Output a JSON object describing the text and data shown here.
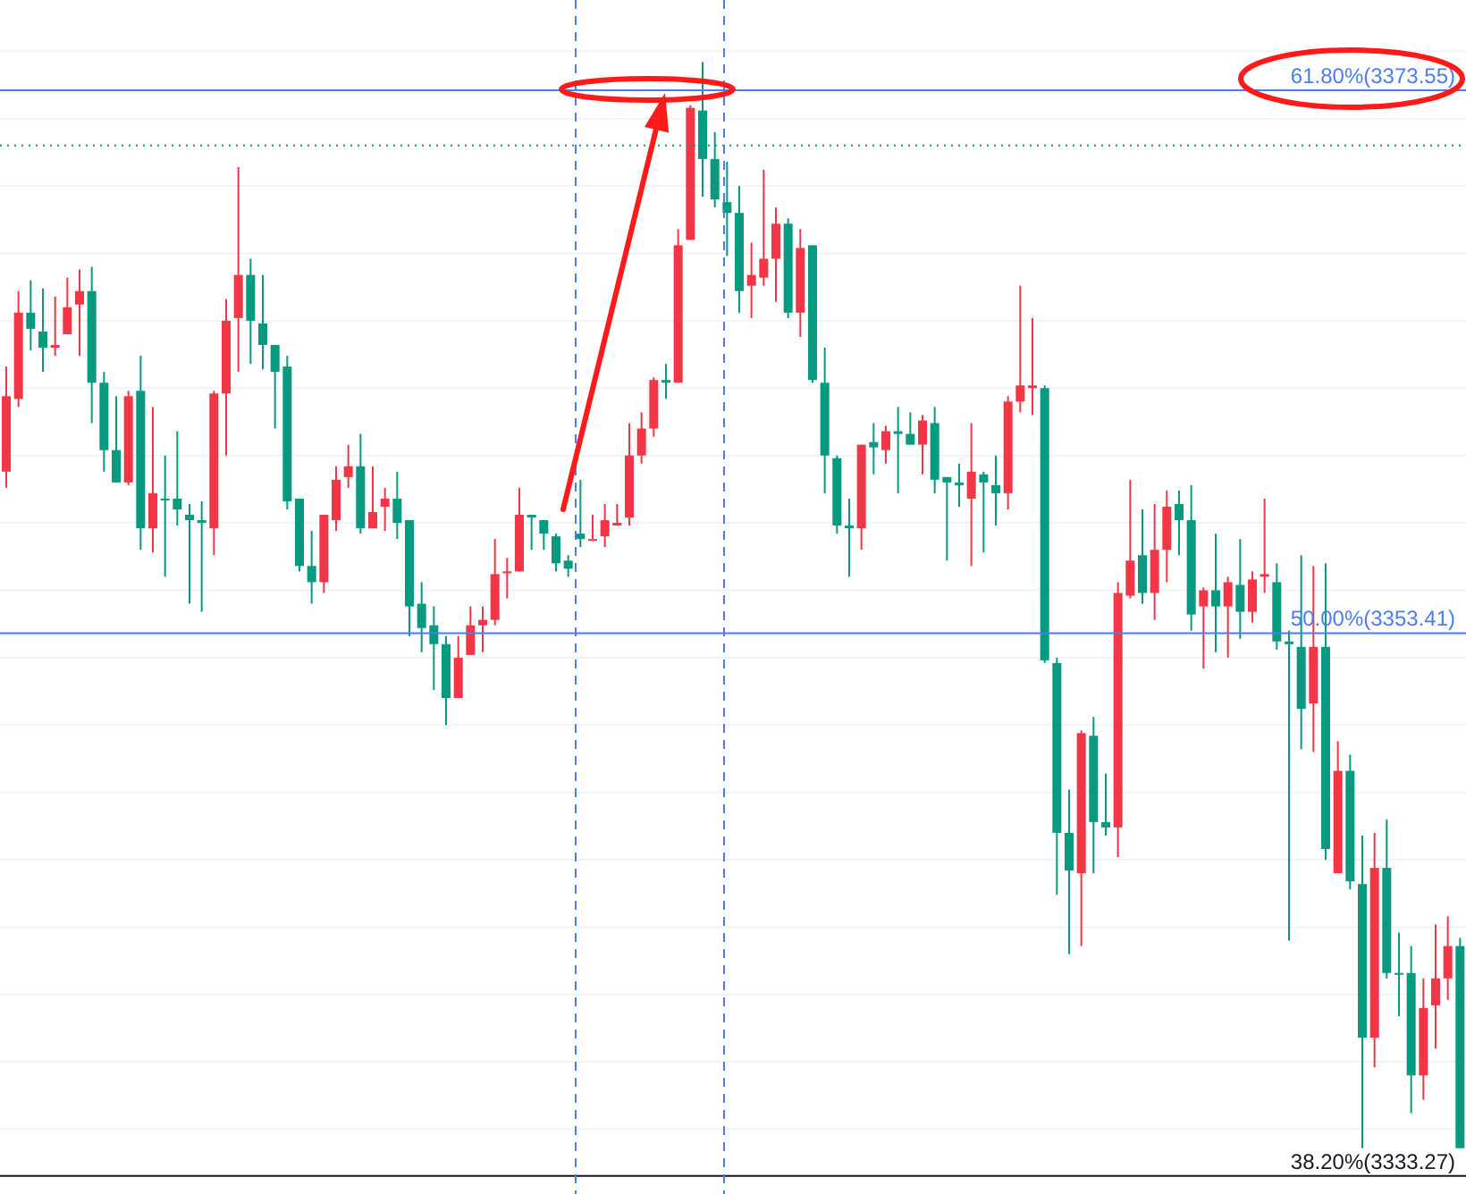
{
  "chart_data": {
    "type": "candlestick",
    "categories": [
      null,
      null,
      null,
      null,
      null,
      null,
      null,
      null,
      null,
      null,
      null,
      null,
      null,
      null,
      null,
      null,
      null,
      null,
      null,
      null,
      null,
      null,
      null,
      null,
      null,
      null,
      null,
      null,
      null,
      null,
      null,
      null,
      null,
      null,
      null,
      null,
      null,
      null,
      null,
      null,
      null,
      null,
      null,
      null,
      null,
      null,
      null,
      null,
      null,
      null,
      null,
      null,
      null,
      null,
      null,
      null,
      null,
      null,
      null,
      null,
      null,
      null,
      null,
      null,
      null,
      null,
      null,
      null,
      null,
      null,
      null,
      null,
      null,
      null,
      null,
      null,
      null,
      null,
      null,
      null,
      null,
      null,
      null,
      null,
      null,
      null,
      null,
      null,
      null,
      null,
      null,
      null,
      null,
      null,
      null,
      null,
      null,
      null,
      null,
      null,
      null,
      null,
      null,
      null,
      null,
      null,
      null,
      null,
      null,
      null,
      null,
      null,
      null,
      null,
      null,
      null,
      null,
      null,
      null,
      null
    ],
    "ohlc": [
      [
        3359.4,
        3363.3,
        3358.8,
        3362.2
      ],
      [
        3362.1,
        3366.1,
        3361.8,
        3365.3
      ],
      [
        3365.3,
        3366.5,
        3363.9,
        3364.7
      ],
      [
        3364.6,
        3366.2,
        3363.1,
        3364.0
      ],
      [
        3364.0,
        3365.9,
        3363.7,
        3364.1
      ],
      [
        3364.5,
        3366.6,
        3364.5,
        3365.5
      ],
      [
        3365.6,
        3366.9,
        3363.7,
        3366.1
      ],
      [
        3366.1,
        3367.0,
        3361.2,
        3362.7
      ],
      [
        3362.7,
        3363.1,
        3359.4,
        3360.2
      ],
      [
        3360.2,
        3362.2,
        3359.0,
        3359.0
      ],
      [
        3359.0,
        3362.4,
        3358.9,
        3362.2
      ],
      [
        3362.4,
        3363.7,
        3356.5,
        3357.3
      ],
      [
        3357.3,
        3361.8,
        3356.4,
        3358.6
      ],
      [
        3358.4,
        3360.0,
        3355.5,
        3358.4
      ],
      [
        3358.4,
        3360.9,
        3357.4,
        3358.0
      ],
      [
        3357.8,
        3358.2,
        3354.5,
        3357.6
      ],
      [
        3357.6,
        3358.3,
        3354.2,
        3357.5
      ],
      [
        3357.3,
        3362.4,
        3356.3,
        3362.3
      ],
      [
        3362.3,
        3365.8,
        3360.0,
        3365.0
      ],
      [
        3365.1,
        3370.7,
        3363.1,
        3366.7
      ],
      [
        3366.7,
        3367.3,
        3363.4,
        3365.0
      ],
      [
        3364.9,
        3366.7,
        3363.2,
        3364.1
      ],
      [
        3364.1,
        3364.1,
        3361.0,
        3363.1
      ],
      [
        3363.3,
        3363.7,
        3358.0,
        3358.3
      ],
      [
        3358.4,
        3358.4,
        3355.7,
        3355.9
      ],
      [
        3355.9,
        3357.2,
        3354.5,
        3355.3
      ],
      [
        3355.3,
        3357.8,
        3354.9,
        3357.8
      ],
      [
        3357.6,
        3359.6,
        3357.2,
        3359.1
      ],
      [
        3359.2,
        3360.4,
        3358.8,
        3359.6
      ],
      [
        3359.6,
        3360.8,
        3357.1,
        3357.3
      ],
      [
        3357.3,
        3359.6,
        3357.3,
        3357.9
      ],
      [
        3358.1,
        3358.8,
        3357.2,
        3358.4
      ],
      [
        3358.4,
        3359.4,
        3356.9,
        3357.5
      ],
      [
        3357.6,
        3357.6,
        3353.3,
        3354.4
      ],
      [
        3354.5,
        3355.3,
        3352.7,
        3353.6
      ],
      [
        3353.7,
        3354.4,
        3351.3,
        3353.0
      ],
      [
        3353.0,
        3353.3,
        3350.0,
        3351.0
      ],
      [
        3351.0,
        3353.3,
        3351.0,
        3352.5
      ],
      [
        3352.6,
        3354.4,
        3352.6,
        3353.7
      ],
      [
        3353.7,
        3354.4,
        3352.7,
        3353.9
      ],
      [
        3353.9,
        3356.9,
        3353.7,
        3355.6
      ],
      [
        3355.7,
        3356.2,
        3354.7,
        3355.7
      ],
      [
        3355.7,
        3358.8,
        3355.7,
        3357.8
      ],
      [
        3357.8,
        3357.8,
        3356.5,
        3357.7
      ],
      [
        3357.6,
        3357.6,
        3356.5,
        3357.1
      ],
      [
        3357.0,
        3357.1,
        3355.7,
        3356.0
      ],
      [
        3356.1,
        3356.3,
        3355.5,
        3355.8
      ],
      [
        3357.1,
        3359.1,
        3356.6,
        3356.9
      ],
      [
        3356.9,
        3357.8,
        3356.9,
        3356.9
      ],
      [
        3357.0,
        3358.2,
        3356.6,
        3357.6
      ],
      [
        3357.4,
        3358.2,
        3357.4,
        3357.5
      ],
      [
        3357.7,
        3361.2,
        3357.4,
        3360.0
      ],
      [
        3360.0,
        3361.6,
        3359.7,
        3361.0
      ],
      [
        3361.0,
        3362.9,
        3360.7,
        3362.8
      ],
      [
        3362.8,
        3363.4,
        3362.1,
        3362.7
      ],
      [
        3362.7,
        3368.4,
        3362.7,
        3367.8
      ],
      [
        3368.0,
        3373.0,
        3368.0,
        3372.9
      ],
      [
        3372.8,
        3374.6,
        3369.6,
        3371.0
      ],
      [
        3371.0,
        3372.0,
        3369.2,
        3369.5
      ],
      [
        3369.4,
        3370.9,
        3367.4,
        3369.0
      ],
      [
        3369.0,
        3370.0,
        3365.3,
        3366.1
      ],
      [
        3366.3,
        3367.9,
        3365.1,
        3366.7
      ],
      [
        3366.6,
        3370.6,
        3366.3,
        3367.3
      ],
      [
        3367.3,
        3369.2,
        3365.7,
        3368.6
      ],
      [
        3368.6,
        3368.8,
        3365.1,
        3365.3
      ],
      [
        3365.3,
        3368.4,
        3364.4,
        3367.7
      ],
      [
        3367.8,
        3367.8,
        3362.7,
        3362.8
      ],
      [
        3362.7,
        3364.0,
        3358.6,
        3360.0
      ],
      [
        3359.9,
        3360.0,
        3357.1,
        3357.4
      ],
      [
        3357.4,
        3358.4,
        3355.5,
        3357.3
      ],
      [
        3357.3,
        3360.4,
        3356.5,
        3360.4
      ],
      [
        3360.5,
        3361.2,
        3359.3,
        3360.3
      ],
      [
        3360.2,
        3361.1,
        3359.7,
        3360.9
      ],
      [
        3360.9,
        3361.8,
        3358.6,
        3360.8
      ],
      [
        3360.8,
        3361.6,
        3360.4,
        3360.4
      ],
      [
        3360.4,
        3361.5,
        3359.3,
        3361.3
      ],
      [
        3361.2,
        3361.8,
        3358.6,
        3359.1
      ],
      [
        3359.2,
        3359.2,
        3356.1,
        3359.0
      ],
      [
        3359.0,
        3359.7,
        3358.1,
        3358.9
      ],
      [
        3358.4,
        3361.2,
        3355.9,
        3359.4
      ],
      [
        3359.3,
        3359.4,
        3356.4,
        3359.0
      ],
      [
        3358.9,
        3360.0,
        3357.4,
        3358.6
      ],
      [
        3358.6,
        3362.2,
        3358.0,
        3362.0
      ],
      [
        3362.0,
        3366.3,
        3361.6,
        3362.6
      ],
      [
        3362.5,
        3365.1,
        3361.5,
        3362.6
      ],
      [
        3362.5,
        3362.6,
        3352.3,
        3352.4
      ],
      [
        3352.3,
        3352.5,
        3343.7,
        3346.0
      ],
      [
        3346.0,
        3347.6,
        3341.5,
        3344.6
      ],
      [
        3344.5,
        3349.8,
        3341.8,
        3349.7
      ],
      [
        3349.6,
        3350.3,
        3344.5,
        3346.4
      ],
      [
        3346.4,
        3348.2,
        3345.9,
        3346.2
      ],
      [
        3346.2,
        3355.3,
        3345.1,
        3354.9
      ],
      [
        3354.8,
        3359.1,
        3354.7,
        3356.1
      ],
      [
        3356.3,
        3358.0,
        3354.5,
        3354.9
      ],
      [
        3354.9,
        3358.2,
        3353.9,
        3356.5
      ],
      [
        3356.5,
        3358.7,
        3355.3,
        3358.1
      ],
      [
        3358.2,
        3358.7,
        3356.3,
        3357.6
      ],
      [
        3357.6,
        3358.9,
        3353.5,
        3354.1
      ],
      [
        3354.4,
        3355.1,
        3352.1,
        3355.0
      ],
      [
        3355.0,
        3357.1,
        3352.7,
        3354.4
      ],
      [
        3354.4,
        3355.5,
        3352.5,
        3355.3
      ],
      [
        3355.2,
        3356.9,
        3353.2,
        3354.2
      ],
      [
        3354.2,
        3355.7,
        3353.8,
        3355.4
      ],
      [
        3355.5,
        3358.4,
        3354.9,
        3355.6
      ],
      [
        3355.3,
        3356.0,
        3352.8,
        3353.1
      ],
      [
        3353.1,
        3353.5,
        3342.0,
        3353.0
      ],
      [
        3352.9,
        3356.3,
        3349.1,
        3350.6
      ],
      [
        3350.8,
        3355.9,
        3349.0,
        3352.9
      ],
      [
        3352.9,
        3356.0,
        3345.0,
        3345.4
      ],
      [
        3344.5,
        3349.4,
        3344.5,
        3348.3
      ],
      [
        3348.3,
        3348.9,
        3343.9,
        3344.2
      ],
      [
        3344.1,
        3345.9,
        3334.3,
        3338.4
      ],
      [
        3338.4,
        3346.0,
        3337.3,
        3344.7
      ],
      [
        3344.7,
        3346.5,
        3340.6,
        3340.8
      ],
      [
        3340.8,
        3342.3,
        3339.2,
        3340.8
      ],
      [
        3340.8,
        3341.8,
        3335.6,
        3337.0
      ],
      [
        3337.0,
        3340.6,
        3336.1,
        3339.5
      ],
      [
        3339.6,
        3342.6,
        3338.0,
        3340.6
      ],
      [
        3340.6,
        3342.9,
        3339.8,
        3341.8
      ],
      [
        3341.8,
        3342.1,
        3334.3,
        3334.3
      ]
    ],
    "colors": [
      "#f23645",
      "#f23645",
      "#089981",
      "#089981",
      "#f23645",
      "#f23645",
      "#f23645",
      "#089981",
      "#089981",
      "#089981",
      "#f23645",
      "#089981",
      "#f23645",
      "#089981",
      "#089981",
      "#089981",
      "#089981",
      "#f23645",
      "#f23645",
      "#f23645",
      "#089981",
      "#089981",
      "#089981",
      "#089981",
      "#089981",
      "#089981",
      "#f23645",
      "#f23645",
      "#f23645",
      "#089981",
      "#f23645",
      "#f23645",
      "#089981",
      "#089981",
      "#089981",
      "#089981",
      "#089981",
      "#f23645",
      "#f23645",
      "#f23645",
      "#f23645",
      "#f23645",
      "#f23645",
      "#089981",
      "#089981",
      "#089981",
      "#089981",
      "#089981",
      "#f23645",
      "#f23645",
      "#f23645",
      "#f23645",
      "#f23645",
      "#f23645",
      "#089981",
      "#f23645",
      "#f23645",
      "#089981",
      "#089981",
      "#089981",
      "#089981",
      "#f23645",
      "#f23645",
      "#f23645",
      "#089981",
      "#f23645",
      "#089981",
      "#089981",
      "#089981",
      "#089981",
      "#f23645",
      "#089981",
      "#f23645",
      "#089981",
      "#089981",
      "#f23645",
      "#089981",
      "#089981",
      "#089981",
      "#f23645",
      "#089981",
      "#089981",
      "#f23645",
      "#f23645",
      "#f23645",
      "#089981",
      "#089981",
      "#089981",
      "#f23645",
      "#089981",
      "#089981",
      "#f23645",
      "#f23645",
      "#089981",
      "#f23645",
      "#f23645",
      "#089981",
      "#089981",
      "#f23645",
      "#089981",
      "#f23645",
      "#089981",
      "#f23645",
      "#f23645",
      "#089981",
      "#089981",
      "#089981",
      "#f23645",
      "#089981",
      "#f23645",
      "#089981",
      "#089981",
      "#f23645",
      "#089981",
      "#089981",
      "#089981",
      "#f23645",
      "#f23645",
      "#f23645",
      "#089981"
    ],
    "ylim": [
      3332.6,
      3376.9
    ],
    "yticks": [
      {
        "value": 3335,
        "label": null
      },
      {
        "value": 3337.5,
        "label": null
      },
      {
        "value": 3340,
        "label": null
      },
      {
        "value": 3342.5,
        "label": null
      },
      {
        "value": 3345,
        "label": null
      },
      {
        "value": 3347.5,
        "label": null
      },
      {
        "value": 3350,
        "label": null
      },
      {
        "value": 3352.5,
        "label": null
      },
      {
        "value": 3355,
        "label": null
      },
      {
        "value": 3357.5,
        "label": null
      },
      {
        "value": 3360,
        "label": null
      },
      {
        "value": 3362.5,
        "label": null
      },
      {
        "value": 3365,
        "label": null
      },
      {
        "value": 3367.5,
        "label": null
      },
      {
        "value": 3370,
        "label": null
      },
      {
        "value": 3372.5,
        "label": null
      },
      {
        "value": 3375,
        "label": null
      }
    ],
    "tick_labels": false,
    "grid": "y",
    "ref_lines": [
      {
        "axis": "y",
        "value": 3373.55,
        "label": "61.80%(3373.55)",
        "color": "#4c7cf3"
      },
      {
        "axis": "y",
        "value": 3353.41,
        "label": "50.00%(3353.41)",
        "color": "#4c7cf3"
      },
      {
        "axis": "y",
        "value": 3333.27,
        "label": "38.20%(3333.27)",
        "color": "#131722"
      },
      {
        "axis": "y",
        "value": 3371.5,
        "color": "#089981",
        "line_style": "dotted"
      }
    ]
  }
}
